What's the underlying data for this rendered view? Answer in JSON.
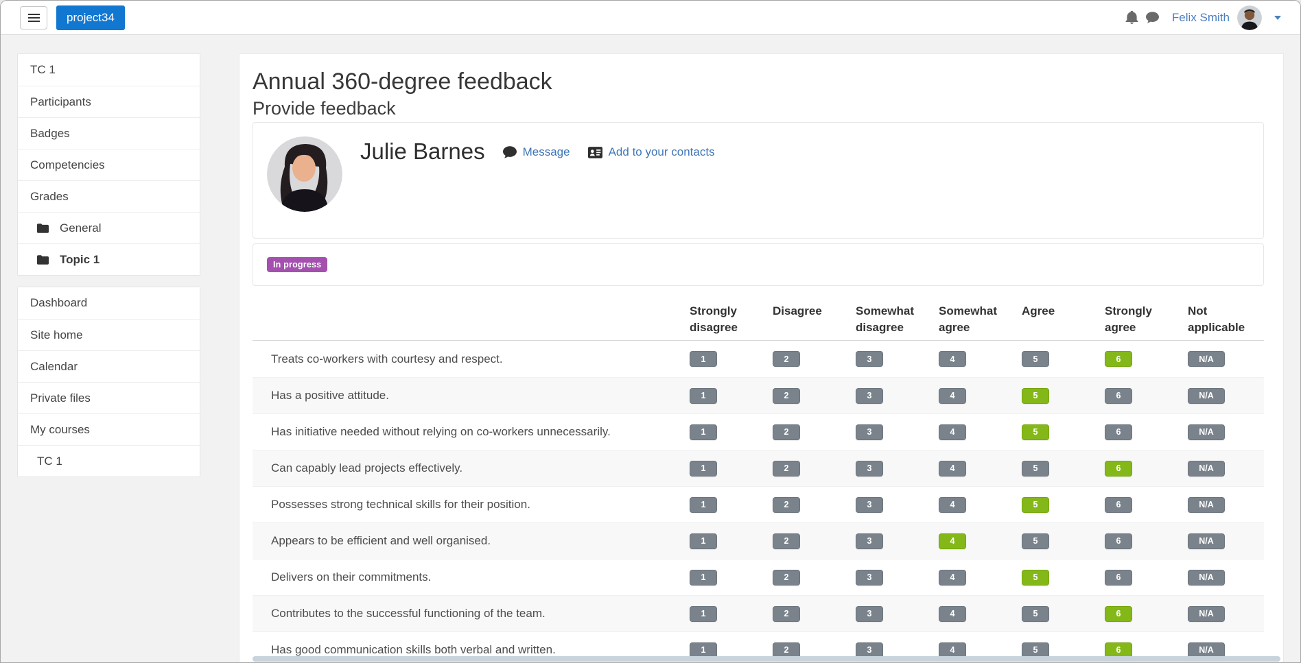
{
  "navbar": {
    "brand": "project34",
    "user_name": "Felix Smith"
  },
  "sidebar": {
    "course_nav": [
      {
        "label": "TC 1"
      },
      {
        "label": "Participants"
      },
      {
        "label": "Badges"
      },
      {
        "label": "Competencies"
      },
      {
        "label": "Grades"
      },
      {
        "label": "General",
        "icon": "folder-icon",
        "indent": true
      },
      {
        "label": "Topic 1",
        "icon": "folder-icon",
        "indent": true,
        "bold": true
      }
    ],
    "site_nav": [
      {
        "label": "Dashboard"
      },
      {
        "label": "Site home"
      },
      {
        "label": "Calendar"
      },
      {
        "label": "Private files"
      },
      {
        "label": "My courses"
      },
      {
        "label": "TC 1",
        "indent": true
      }
    ]
  },
  "main": {
    "title": "Annual 360-degree feedback",
    "subtitle": "Provide feedback",
    "person": {
      "name": "Julie Barnes",
      "message_link": "Message",
      "contacts_link": "Add to your contacts"
    },
    "status_badge": "In progress"
  },
  "table": {
    "headers": [
      "Strongly disagree",
      "Disagree",
      "Somewhat disagree",
      "Somewhat agree",
      "Agree",
      "Strongly agree",
      "Not applicable"
    ],
    "option_labels": [
      "1",
      "2",
      "3",
      "4",
      "5",
      "6",
      "N/A"
    ],
    "rows": [
      {
        "statement": "Treats co-workers with courtesy and respect.",
        "selected": "6"
      },
      {
        "statement": "Has a positive attitude.",
        "selected": "5"
      },
      {
        "statement": "Has initiative needed without relying on co-workers unnecessarily.",
        "selected": "5"
      },
      {
        "statement": "Can capably lead projects effectively.",
        "selected": "6"
      },
      {
        "statement": "Possesses strong technical skills for their position.",
        "selected": "5"
      },
      {
        "statement": "Appears to be efficient and well organised.",
        "selected": "4"
      },
      {
        "statement": "Delivers on their commitments.",
        "selected": "5"
      },
      {
        "statement": "Contributes to the successful functioning of the team.",
        "selected": "6"
      },
      {
        "statement": "Has good communication skills both verbal and written.",
        "selected": "6"
      }
    ]
  },
  "icons": {
    "menu": "hamburger-icon",
    "notifications": "bell-icon",
    "messages": "chat-icon",
    "user_menu": "chevron-down-icon",
    "course_section": "folder-icon",
    "message_link": "chat-icon",
    "contacts_link": "address-card-icon"
  },
  "colors": {
    "brand_blue": "#1177d1",
    "link_blue": "#3e76b8",
    "badge_purple": "#a450ae",
    "option_gray": "#7a838c",
    "option_selected_green": "#84b819"
  }
}
